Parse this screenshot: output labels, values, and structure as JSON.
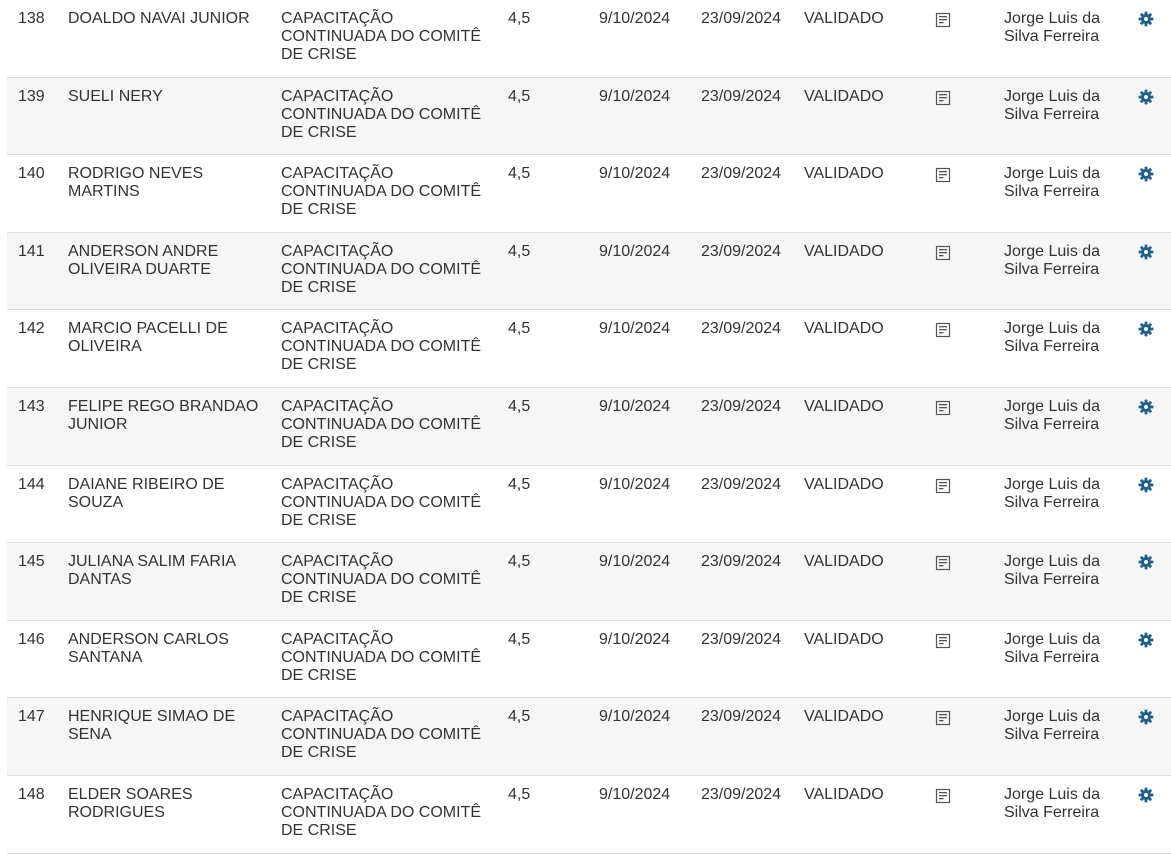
{
  "colors": {
    "text": "#333333",
    "row_alt": "#f6f6f6",
    "divider": "#dddddd",
    "doc_icon": "#555555",
    "gear_icon": "#1f5f8b"
  },
  "icons": {
    "document": "document-icon",
    "settings": "gear-icon"
  },
  "rows": [
    {
      "id": "138",
      "name": "DOALDO NAVAI JUNIOR",
      "course": "CAPACITAÇÃO CONTINUADA DO COMITÊ DE CRISE",
      "hours": "4,5",
      "date_start": "9/10/2024",
      "date_end": "23/09/2024",
      "status": "VALIDADO",
      "responsible": "Jorge Luis da Silva Ferreira"
    },
    {
      "id": "139",
      "name": "SUELI NERY",
      "course": "CAPACITAÇÃO CONTINUADA DO COMITÊ DE CRISE",
      "hours": "4,5",
      "date_start": "9/10/2024",
      "date_end": "23/09/2024",
      "status": "VALIDADO",
      "responsible": "Jorge Luis da Silva Ferreira"
    },
    {
      "id": "140",
      "name": "RODRIGO NEVES MARTINS",
      "course": "CAPACITAÇÃO CONTINUADA DO COMITÊ DE CRISE",
      "hours": "4,5",
      "date_start": "9/10/2024",
      "date_end": "23/09/2024",
      "status": "VALIDADO",
      "responsible": "Jorge Luis da Silva Ferreira"
    },
    {
      "id": "141",
      "name": "ANDERSON ANDRE OLIVEIRA DUARTE",
      "course": "CAPACITAÇÃO CONTINUADA DO COMITÊ DE CRISE",
      "hours": "4,5",
      "date_start": "9/10/2024",
      "date_end": "23/09/2024",
      "status": "VALIDADO",
      "responsible": "Jorge Luis da Silva Ferreira"
    },
    {
      "id": "142",
      "name": "MARCIO PACELLI DE OLIVEIRA",
      "course": "CAPACITAÇÃO CONTINUADA DO COMITÊ DE CRISE",
      "hours": "4,5",
      "date_start": "9/10/2024",
      "date_end": "23/09/2024",
      "status": "VALIDADO",
      "responsible": "Jorge Luis da Silva Ferreira"
    },
    {
      "id": "143",
      "name": "FELIPE REGO BRANDAO JUNIOR",
      "course": "CAPACITAÇÃO CONTINUADA DO COMITÊ DE CRISE",
      "hours": "4,5",
      "date_start": "9/10/2024",
      "date_end": "23/09/2024",
      "status": "VALIDADO",
      "responsible": "Jorge Luis da Silva Ferreira"
    },
    {
      "id": "144",
      "name": "DAIANE RIBEIRO DE SOUZA",
      "course": "CAPACITAÇÃO CONTINUADA DO COMITÊ DE CRISE",
      "hours": "4,5",
      "date_start": "9/10/2024",
      "date_end": "23/09/2024",
      "status": "VALIDADO",
      "responsible": "Jorge Luis da Silva Ferreira"
    },
    {
      "id": "145",
      "name": "JULIANA SALIM FARIA DANTAS",
      "course": "CAPACITAÇÃO CONTINUADA DO COMITÊ DE CRISE",
      "hours": "4,5",
      "date_start": "9/10/2024",
      "date_end": "23/09/2024",
      "status": "VALIDADO",
      "responsible": "Jorge Luis da Silva Ferreira"
    },
    {
      "id": "146",
      "name": "ANDERSON CARLOS SANTANA",
      "course": "CAPACITAÇÃO CONTINUADA DO COMITÊ DE CRISE",
      "hours": "4,5",
      "date_start": "9/10/2024",
      "date_end": "23/09/2024",
      "status": "VALIDADO",
      "responsible": "Jorge Luis da Silva Ferreira"
    },
    {
      "id": "147",
      "name": "HENRIQUE SIMAO DE SENA",
      "course": "CAPACITAÇÃO CONTINUADA DO COMITÊ DE CRISE",
      "hours": "4,5",
      "date_start": "9/10/2024",
      "date_end": "23/09/2024",
      "status": "VALIDADO",
      "responsible": "Jorge Luis da Silva Ferreira"
    },
    {
      "id": "148",
      "name": "ELDER SOARES RODRIGUES",
      "course": "CAPACITAÇÃO CONTINUADA DO COMITÊ DE CRISE",
      "hours": "4,5",
      "date_start": "9/10/2024",
      "date_end": "23/09/2024",
      "status": "VALIDADO",
      "responsible": "Jorge Luis da Silva Ferreira"
    }
  ]
}
